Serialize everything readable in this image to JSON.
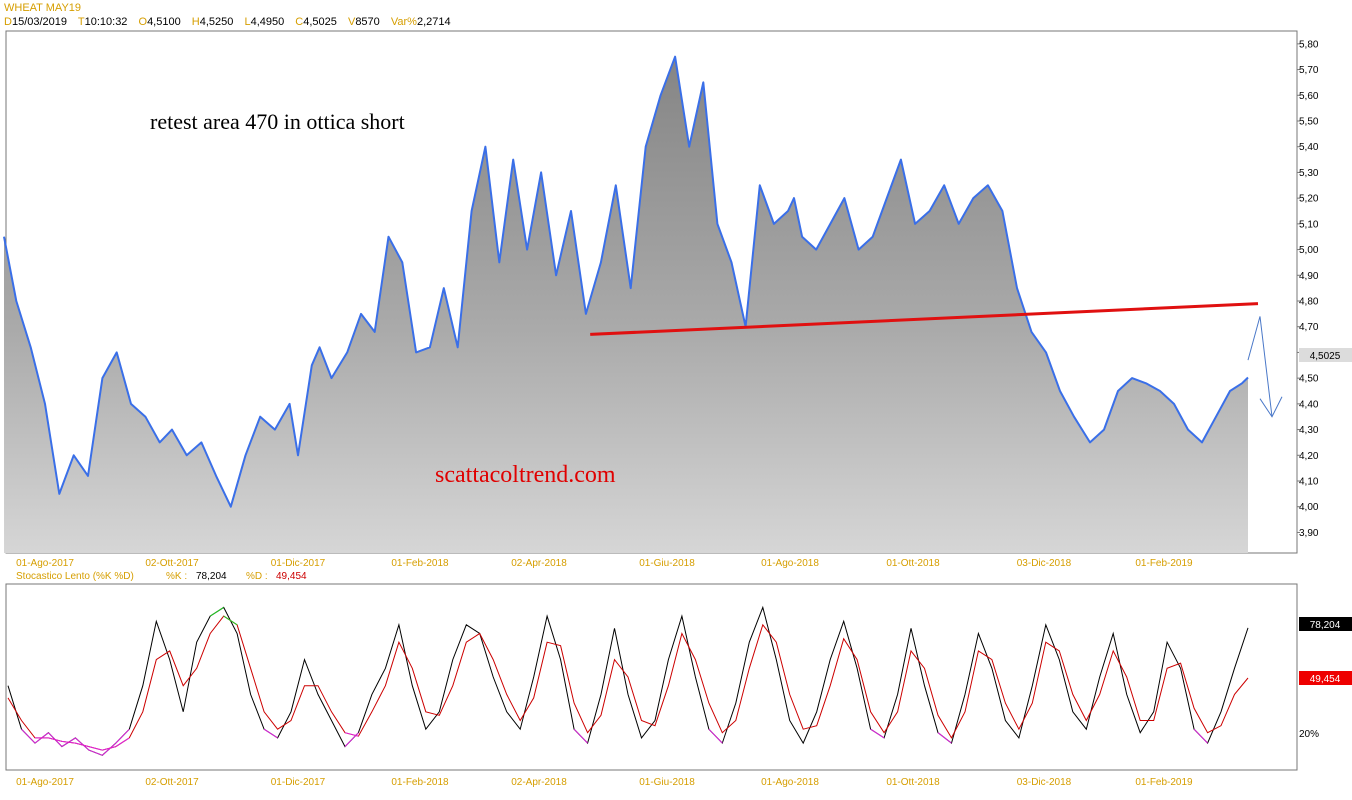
{
  "header": {
    "symbol": "WHEAT MAY19",
    "fields": [
      {
        "key": "D",
        "value": "15/03/2019"
      },
      {
        "key": "T",
        "value": "10:10:32"
      },
      {
        "key": "O",
        "value": "4,5100"
      },
      {
        "key": "H",
        "value": "4,5250"
      },
      {
        "key": "L",
        "value": "4,4950"
      },
      {
        "key": "C",
        "value": "4,5025"
      },
      {
        "key": "V",
        "value": "8570"
      },
      {
        "key": "Var%",
        "value": "2,2714"
      }
    ]
  },
  "colors": {
    "price_line": "#3a6fe8",
    "trend_line": "#e01010",
    "axis_text": "#d69e00",
    "stoch_k": "#000000",
    "stoch_d": "#cc0000",
    "overbought": "#22cc22",
    "oversold": "#dd22dd"
  },
  "annotations": {
    "text": "retest area 470 in ottica short",
    "site": "scattacoltrend.com"
  },
  "chart_data": [
    {
      "type": "area",
      "ylim": [
        3.82,
        5.85
      ],
      "yticks": [
        "5,80",
        "5,70",
        "5,60",
        "5,50",
        "5,40",
        "5,30",
        "5,20",
        "5,10",
        "5,00",
        "4,90",
        "4,80",
        "4,70",
        "4,60",
        "4,50",
        "4,40",
        "4,30",
        "4,20",
        "4,10",
        "4,00",
        "3,90"
      ],
      "ytick_values": [
        5.8,
        5.7,
        5.6,
        5.5,
        5.4,
        5.3,
        5.2,
        5.1,
        5.0,
        4.9,
        4.8,
        4.7,
        4.6,
        4.5,
        4.4,
        4.3,
        4.2,
        4.1,
        4.0,
        3.9
      ],
      "x_labels": [
        "01-Ago-2017",
        "02-Ott-2017",
        "01-Dic-2017",
        "01-Feb-2018",
        "02-Apr-2018",
        "01-Giu-2018",
        "01-Ago-2018",
        "01-Ott-2018",
        "03-Dic-2018",
        "01-Feb-2019"
      ],
      "last_value_label": "4,5025",
      "series": [
        {
          "x": [
            "2017-07-12",
            "2017-07-18",
            "2017-07-25",
            "2017-08-01",
            "2017-08-08",
            "2017-08-15",
            "2017-08-22",
            "2017-08-29",
            "2017-09-05",
            "2017-09-12",
            "2017-09-19",
            "2017-09-26",
            "2017-10-02",
            "2017-10-09",
            "2017-10-16",
            "2017-10-23",
            "2017-10-30",
            "2017-11-06",
            "2017-11-13",
            "2017-11-20",
            "2017-11-27",
            "2017-12-01",
            "2017-12-05",
            "2017-12-08",
            "2017-12-12",
            "2017-12-18",
            "2017-12-26",
            "2018-01-02",
            "2018-01-09",
            "2018-01-16",
            "2018-01-23",
            "2018-01-30",
            "2018-02-06",
            "2018-02-13",
            "2018-02-20",
            "2018-02-27",
            "2018-03-06",
            "2018-03-13",
            "2018-03-20",
            "2018-03-27",
            "2018-04-03",
            "2018-04-10",
            "2018-04-17",
            "2018-04-24",
            "2018-05-01",
            "2018-05-08",
            "2018-05-15",
            "2018-05-22",
            "2018-05-29",
            "2018-06-05",
            "2018-06-12",
            "2018-06-19",
            "2018-06-26",
            "2018-07-03",
            "2018-07-10",
            "2018-07-17",
            "2018-07-24",
            "2018-07-31",
            "2018-08-03",
            "2018-08-07",
            "2018-08-14",
            "2018-08-21",
            "2018-08-28",
            "2018-09-04",
            "2018-09-11",
            "2018-09-18",
            "2018-09-25",
            "2018-10-02",
            "2018-10-09",
            "2018-10-16",
            "2018-10-23",
            "2018-10-30",
            "2018-11-06",
            "2018-11-13",
            "2018-11-20",
            "2018-11-27",
            "2018-12-04",
            "2018-12-11",
            "2018-12-18",
            "2018-12-26",
            "2019-01-02",
            "2019-01-09",
            "2019-01-16",
            "2019-01-23",
            "2019-01-30",
            "2019-02-06",
            "2019-02-13",
            "2019-02-20",
            "2019-02-27",
            "2019-03-06",
            "2019-03-12",
            "2019-03-15"
          ],
          "values": [
            5.05,
            4.8,
            4.62,
            4.4,
            4.05,
            4.2,
            4.12,
            4.5,
            4.6,
            4.4,
            4.35,
            4.25,
            4.3,
            4.2,
            4.25,
            4.12,
            4.0,
            4.2,
            4.35,
            4.3,
            4.4,
            4.2,
            4.4,
            4.55,
            4.62,
            4.5,
            4.6,
            4.75,
            4.68,
            5.05,
            4.95,
            4.6,
            4.62,
            4.85,
            4.62,
            5.15,
            5.4,
            4.95,
            5.35,
            5.0,
            5.3,
            4.9,
            5.15,
            4.75,
            4.95,
            5.25,
            4.85,
            5.4,
            5.6,
            5.75,
            5.4,
            5.65,
            5.1,
            4.95,
            4.7,
            5.25,
            5.1,
            5.15,
            5.2,
            5.05,
            5.0,
            5.1,
            5.2,
            5.0,
            5.05,
            5.2,
            5.35,
            5.1,
            5.15,
            5.25,
            5.1,
            5.2,
            5.25,
            5.15,
            4.85,
            4.68,
            4.6,
            4.45,
            4.35,
            4.25,
            4.3,
            4.45,
            4.5,
            4.48,
            4.45,
            4.4,
            4.3,
            4.25,
            4.35,
            4.45,
            4.48,
            4.5025
          ],
          "name": ""
        }
      ],
      "trendline": {
        "x": [
          "2018-04-26",
          "2019-03-20"
        ],
        "y": [
          4.67,
          4.79
        ]
      },
      "projection_arrow": {
        "x": [
          "2019-03-15",
          "2019-03-21",
          "2019-03-27"
        ],
        "y": [
          4.57,
          4.74,
          4.35
        ]
      }
    },
    {
      "type": "line",
      "title": "Stocastico Lento (%K %D)",
      "legend": [
        {
          "label": "%K :",
          "value": "78,204"
        },
        {
          "label": "%D :",
          "value": "49,454"
        }
      ],
      "ylim": [
        0,
        100
      ],
      "level_label": "20%",
      "level_value": 20,
      "x_labels": [
        "01-Ago-2017",
        "02-Ott-2017",
        "01-Dic-2017",
        "01-Feb-2018",
        "02-Apr-2018",
        "01-Giu-2018",
        "01-Ago-2018",
        "01-Ott-2018",
        "03-Dic-2018",
        "01-Feb-2019"
      ],
      "k_last_label": "78,204",
      "d_last_label": "49,454",
      "series": [
        {
          "name": "%K",
          "values": [
            45,
            20,
            12,
            18,
            10,
            15,
            8,
            5,
            12,
            20,
            45,
            82,
            60,
            30,
            70,
            85,
            90,
            75,
            40,
            20,
            15,
            30,
            60,
            40,
            25,
            10,
            18,
            40,
            55,
            80,
            45,
            20,
            30,
            60,
            80,
            75,
            50,
            30,
            20,
            50,
            85,
            60,
            20,
            12,
            40,
            78,
            40,
            15,
            25,
            60,
            85,
            50,
            20,
            12,
            35,
            70,
            90,
            60,
            25,
            12,
            30,
            60,
            82,
            55,
            20,
            15,
            40,
            78,
            45,
            18,
            12,
            40,
            75,
            55,
            25,
            15,
            45,
            80,
            60,
            30,
            20,
            50,
            75,
            40,
            18,
            30,
            70,
            55,
            20,
            12,
            30,
            55,
            78.204
          ]
        },
        {
          "name": "%D",
          "values": [
            38,
            25,
            15,
            15,
            13,
            12,
            10,
            8,
            10,
            15,
            30,
            60,
            65,
            45,
            55,
            75,
            85,
            80,
            55,
            30,
            20,
            25,
            45,
            45,
            30,
            18,
            16,
            30,
            45,
            70,
            55,
            30,
            28,
            45,
            70,
            75,
            60,
            40,
            25,
            38,
            70,
            68,
            35,
            18,
            28,
            60,
            50,
            25,
            22,
            45,
            75,
            60,
            35,
            18,
            25,
            55,
            80,
            70,
            40,
            20,
            22,
            45,
            72,
            60,
            30,
            18,
            30,
            65,
            55,
            28,
            15,
            30,
            65,
            60,
            35,
            20,
            35,
            70,
            65,
            40,
            25,
            40,
            65,
            50,
            25,
            25,
            55,
            58,
            32,
            18,
            22,
            40,
            49.454
          ]
        }
      ]
    }
  ]
}
